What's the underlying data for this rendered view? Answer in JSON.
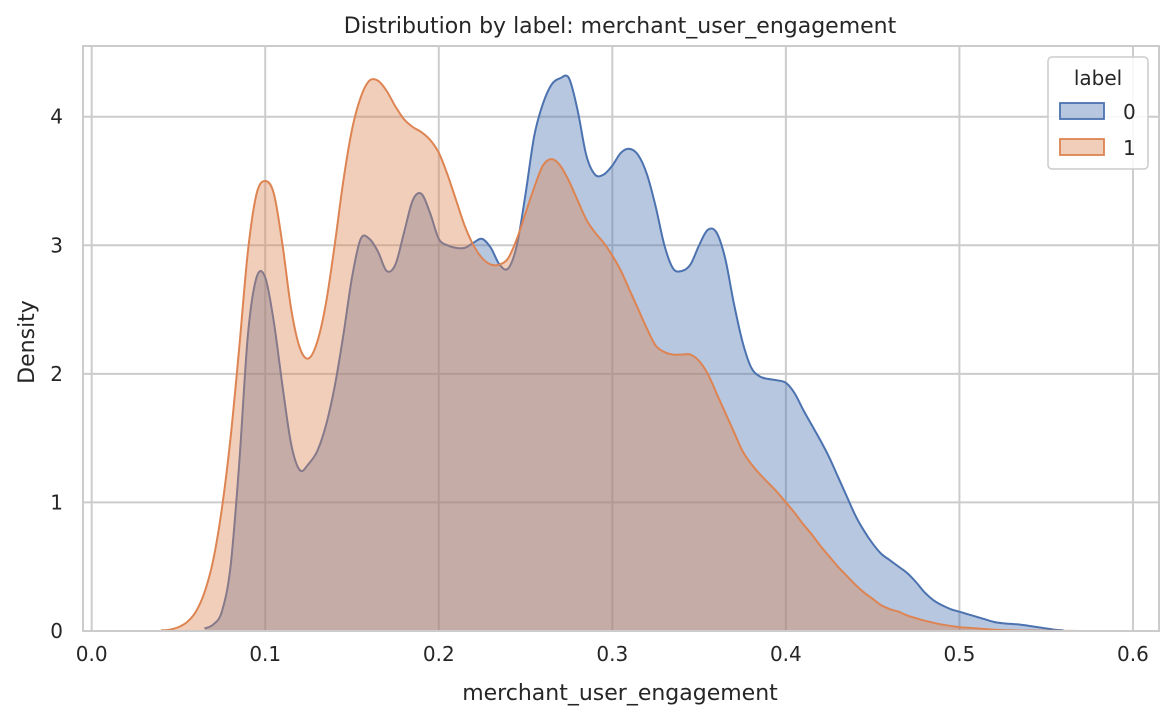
{
  "chart_data": {
    "type": "area",
    "title": "Distribution by label: merchant_user_engagement",
    "xlabel": "merchant_user_engagement",
    "ylabel": "Density",
    "xlim": [
      -0.005,
      0.615
    ],
    "ylim": [
      0,
      4.55
    ],
    "xticks": [
      0.0,
      0.1,
      0.2,
      0.3,
      0.4,
      0.5,
      0.6
    ],
    "xtick_labels": [
      "0.0",
      "0.1",
      "0.2",
      "0.3",
      "0.4",
      "0.5",
      "0.6"
    ],
    "yticks": [
      0,
      1,
      2,
      3,
      4
    ],
    "ytick_labels": [
      "0",
      "1",
      "2",
      "3",
      "4"
    ],
    "grid": true,
    "legend": {
      "title": "label",
      "placement": "top-right"
    },
    "series": [
      {
        "name": "0",
        "color": "#4c72b0",
        "fill_opacity": 0.4,
        "x": [
          0.065,
          0.07,
          0.075,
          0.08,
          0.085,
          0.09,
          0.095,
          0.1,
          0.105,
          0.11,
          0.115,
          0.12,
          0.125,
          0.13,
          0.135,
          0.14,
          0.145,
          0.15,
          0.155,
          0.16,
          0.165,
          0.17,
          0.175,
          0.18,
          0.185,
          0.19,
          0.195,
          0.2,
          0.205,
          0.21,
          0.215,
          0.22,
          0.225,
          0.23,
          0.235,
          0.24,
          0.245,
          0.25,
          0.255,
          0.26,
          0.265,
          0.27,
          0.275,
          0.28,
          0.285,
          0.29,
          0.295,
          0.3,
          0.305,
          0.31,
          0.315,
          0.32,
          0.325,
          0.33,
          0.335,
          0.34,
          0.345,
          0.35,
          0.355,
          0.36,
          0.365,
          0.37,
          0.375,
          0.38,
          0.385,
          0.39,
          0.395,
          0.4,
          0.405,
          0.41,
          0.415,
          0.42,
          0.425,
          0.43,
          0.435,
          0.44,
          0.445,
          0.45,
          0.455,
          0.46,
          0.465,
          0.47,
          0.475,
          0.48,
          0.485,
          0.49,
          0.495,
          0.5,
          0.505,
          0.51,
          0.515,
          0.52,
          0.525,
          0.53,
          0.535,
          0.54,
          0.545,
          0.55,
          0.555,
          0.56
        ],
        "y": [
          0.02,
          0.05,
          0.15,
          0.5,
          1.3,
          2.3,
          2.75,
          2.75,
          2.4,
          1.9,
          1.45,
          1.25,
          1.3,
          1.4,
          1.6,
          1.9,
          2.3,
          2.75,
          3.05,
          3.05,
          2.95,
          2.8,
          2.85,
          3.1,
          3.35,
          3.4,
          3.25,
          3.05,
          3.0,
          2.98,
          2.98,
          3.02,
          3.05,
          2.98,
          2.85,
          2.82,
          3.0,
          3.4,
          3.85,
          4.1,
          4.25,
          4.3,
          4.3,
          4.05,
          3.7,
          3.55,
          3.55,
          3.62,
          3.72,
          3.75,
          3.7,
          3.55,
          3.3,
          3.0,
          2.82,
          2.8,
          2.85,
          3.0,
          3.12,
          3.1,
          2.9,
          2.55,
          2.25,
          2.05,
          1.98,
          1.96,
          1.95,
          1.93,
          1.85,
          1.72,
          1.6,
          1.48,
          1.35,
          1.2,
          1.05,
          0.9,
          0.78,
          0.68,
          0.6,
          0.55,
          0.5,
          0.45,
          0.38,
          0.3,
          0.24,
          0.2,
          0.17,
          0.15,
          0.13,
          0.11,
          0.09,
          0.07,
          0.06,
          0.055,
          0.05,
          0.04,
          0.03,
          0.02,
          0.01,
          0.005
        ]
      },
      {
        "name": "1",
        "color": "#dd8452",
        "fill_opacity": 0.4,
        "x": [
          0.04,
          0.045,
          0.05,
          0.055,
          0.06,
          0.065,
          0.07,
          0.075,
          0.08,
          0.085,
          0.09,
          0.095,
          0.1,
          0.105,
          0.11,
          0.115,
          0.12,
          0.125,
          0.13,
          0.135,
          0.14,
          0.145,
          0.15,
          0.155,
          0.16,
          0.165,
          0.17,
          0.175,
          0.18,
          0.185,
          0.19,
          0.195,
          0.2,
          0.205,
          0.21,
          0.215,
          0.22,
          0.225,
          0.23,
          0.235,
          0.24,
          0.245,
          0.25,
          0.255,
          0.26,
          0.265,
          0.27,
          0.275,
          0.28,
          0.285,
          0.29,
          0.295,
          0.3,
          0.305,
          0.31,
          0.315,
          0.32,
          0.325,
          0.33,
          0.335,
          0.34,
          0.345,
          0.35,
          0.355,
          0.36,
          0.365,
          0.37,
          0.375,
          0.38,
          0.385,
          0.39,
          0.395,
          0.4,
          0.405,
          0.41,
          0.415,
          0.42,
          0.425,
          0.43,
          0.435,
          0.44,
          0.445,
          0.45,
          0.455,
          0.46,
          0.465,
          0.47,
          0.475,
          0.48,
          0.49,
          0.5,
          0.51,
          0.52,
          0.53,
          0.54,
          0.55,
          0.56,
          0.57
        ],
        "y": [
          0.005,
          0.01,
          0.03,
          0.07,
          0.15,
          0.3,
          0.55,
          0.95,
          1.5,
          2.2,
          2.95,
          3.4,
          3.5,
          3.4,
          3.0,
          2.5,
          2.2,
          2.12,
          2.25,
          2.55,
          3.0,
          3.5,
          3.9,
          4.15,
          4.28,
          4.28,
          4.2,
          4.08,
          3.98,
          3.92,
          3.88,
          3.82,
          3.72,
          3.55,
          3.35,
          3.15,
          3.0,
          2.9,
          2.85,
          2.85,
          2.9,
          3.05,
          3.25,
          3.45,
          3.62,
          3.67,
          3.62,
          3.5,
          3.35,
          3.2,
          3.1,
          3.02,
          2.92,
          2.8,
          2.65,
          2.5,
          2.35,
          2.22,
          2.17,
          2.15,
          2.15,
          2.15,
          2.1,
          2.0,
          1.85,
          1.7,
          1.55,
          1.4,
          1.3,
          1.22,
          1.15,
          1.08,
          1.0,
          0.92,
          0.83,
          0.75,
          0.66,
          0.58,
          0.5,
          0.43,
          0.36,
          0.3,
          0.25,
          0.2,
          0.17,
          0.15,
          0.12,
          0.1,
          0.08,
          0.05,
          0.03,
          0.02,
          0.01,
          0.005,
          0.003,
          0.002,
          0.001,
          0.0
        ]
      }
    ]
  }
}
